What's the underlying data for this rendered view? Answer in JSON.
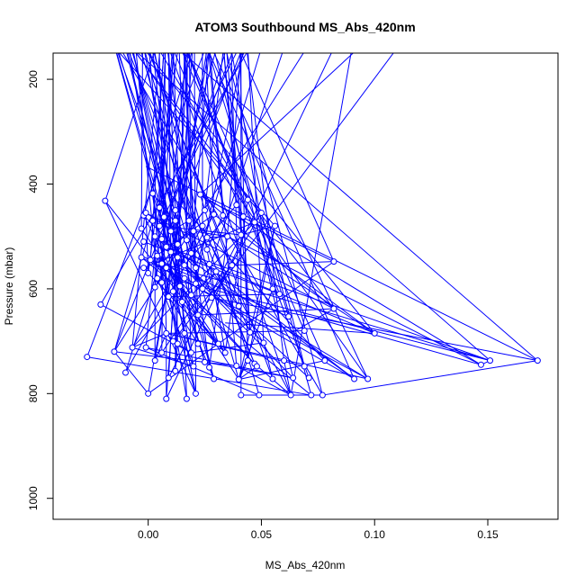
{
  "chart_data": {
    "type": "line",
    "title": "ATOM3 Southbound MS_Abs_420nm",
    "xlabel": "MS_Abs_420nm",
    "ylabel": "Pressure (mbar)",
    "xlim": [
      -0.042,
      0.181
    ],
    "ylim": [
      1040,
      150
    ],
    "y_reversed": true,
    "x_ticks": [
      0.0,
      0.05,
      0.1,
      0.15
    ],
    "x_tick_labels": [
      "0.00",
      "0.05",
      "0.10",
      "0.15"
    ],
    "y_ticks": [
      200,
      400,
      600,
      800,
      1000
    ],
    "y_tick_labels": [
      "200",
      "400",
      "600",
      "800",
      "1000"
    ],
    "grid": false,
    "legend": "none",
    "color": "#0000ff",
    "marker": "open-circle",
    "points": [
      [
        -0.019,
        432
      ],
      [
        -0.021,
        630
      ],
      [
        -0.027,
        730
      ],
      [
        -0.015,
        720
      ],
      [
        -0.01,
        760
      ],
      [
        -0.007,
        712
      ],
      [
        -0.003,
        540
      ],
      [
        -0.002,
        460
      ],
      [
        -0.003,
        485
      ],
      [
        -0.002,
        510
      ],
      [
        -0.001,
        455
      ],
      [
        -0.002,
        560
      ],
      [
        0.0,
        570
      ],
      [
        0.001,
        545
      ],
      [
        0.002,
        418
      ],
      [
        0.002,
        470
      ],
      [
        0.003,
        500
      ],
      [
        0.003,
        597
      ],
      [
        0.004,
        537
      ],
      [
        0.004,
        580
      ],
      [
        0.005,
        445
      ],
      [
        0.005,
        480
      ],
      [
        0.006,
        505
      ],
      [
        0.006,
        552
      ],
      [
        0.006,
        588
      ],
      [
        0.007,
        463
      ],
      [
        0.008,
        520
      ],
      [
        0.008,
        560
      ],
      [
        0.009,
        615
      ],
      [
        0.01,
        490
      ],
      [
        0.01,
        530
      ],
      [
        0.011,
        605
      ],
      [
        0.012,
        450
      ],
      [
        0.012,
        470
      ],
      [
        0.013,
        515
      ],
      [
        0.013,
        540
      ],
      [
        0.014,
        595
      ],
      [
        0.015,
        625
      ],
      [
        0.016,
        555
      ],
      [
        0.016,
        580
      ],
      [
        0.017,
        507
      ],
      [
        0.018,
        470
      ],
      [
        0.019,
        532
      ],
      [
        0.019,
        612
      ],
      [
        0.02,
        490
      ],
      [
        0.021,
        560
      ],
      [
        0.021,
        590
      ],
      [
        0.022,
        650
      ],
      [
        0.023,
        420
      ],
      [
        0.024,
        600
      ],
      [
        0.024,
        480
      ],
      [
        0.025,
        450
      ],
      [
        0.026,
        525
      ],
      [
        0.026,
        502
      ],
      [
        0.027,
        553
      ],
      [
        0.028,
        617
      ],
      [
        0.029,
        458
      ],
      [
        0.03,
        567
      ],
      [
        0.033,
        460
      ],
      [
        0.035,
        500
      ],
      [
        0.037,
        555
      ],
      [
        0.039,
        440
      ],
      [
        0.04,
        633
      ],
      [
        0.041,
        497
      ],
      [
        0.042,
        462
      ],
      [
        0.044,
        430
      ],
      [
        0.045,
        683
      ],
      [
        0.047,
        473
      ],
      [
        0.05,
        455
      ],
      [
        0.055,
        600
      ],
      [
        0.056,
        480
      ],
      [
        0.058,
        610
      ],
      [
        0.062,
        653
      ],
      [
        0.069,
        680
      ],
      [
        0.082,
        548
      ],
      [
        0.082,
        638
      ],
      [
        0.1,
        685
      ],
      [
        -0.001,
        712
      ],
      [
        0.003,
        737
      ],
      [
        0.006,
        722
      ],
      [
        0.008,
        685
      ],
      [
        0.009,
        770
      ],
      [
        0.011,
        700
      ],
      [
        0.012,
        757
      ],
      [
        0.013,
        705
      ],
      [
        0.016,
        685
      ],
      [
        0.019,
        722
      ],
      [
        0.02,
        748
      ],
      [
        0.022,
        705
      ],
      [
        0.025,
        740
      ],
      [
        0.027,
        750
      ],
      [
        0.029,
        772
      ],
      [
        0.031,
        705
      ],
      [
        0.034,
        722
      ],
      [
        0.039,
        747
      ],
      [
        0.04,
        773
      ],
      [
        0.044,
        737
      ],
      [
        0.047,
        743
      ],
      [
        0.048,
        748
      ],
      [
        0.051,
        703
      ],
      [
        0.055,
        772
      ],
      [
        0.06,
        737
      ],
      [
        0.064,
        770
      ],
      [
        0.069,
        748
      ],
      [
        0.071,
        770
      ],
      [
        0.078,
        737
      ],
      [
        0.091,
        772
      ],
      [
        0.097,
        772
      ],
      [
        0.147,
        745
      ],
      [
        0.151,
        737
      ],
      [
        0.172,
        737
      ],
      [
        0.0,
        800
      ],
      [
        0.008,
        810
      ],
      [
        0.017,
        810
      ],
      [
        0.021,
        800
      ],
      [
        0.041,
        803
      ],
      [
        0.049,
        803
      ],
      [
        0.063,
        803
      ],
      [
        0.072,
        803
      ],
      [
        0.077,
        803
      ]
    ]
  }
}
